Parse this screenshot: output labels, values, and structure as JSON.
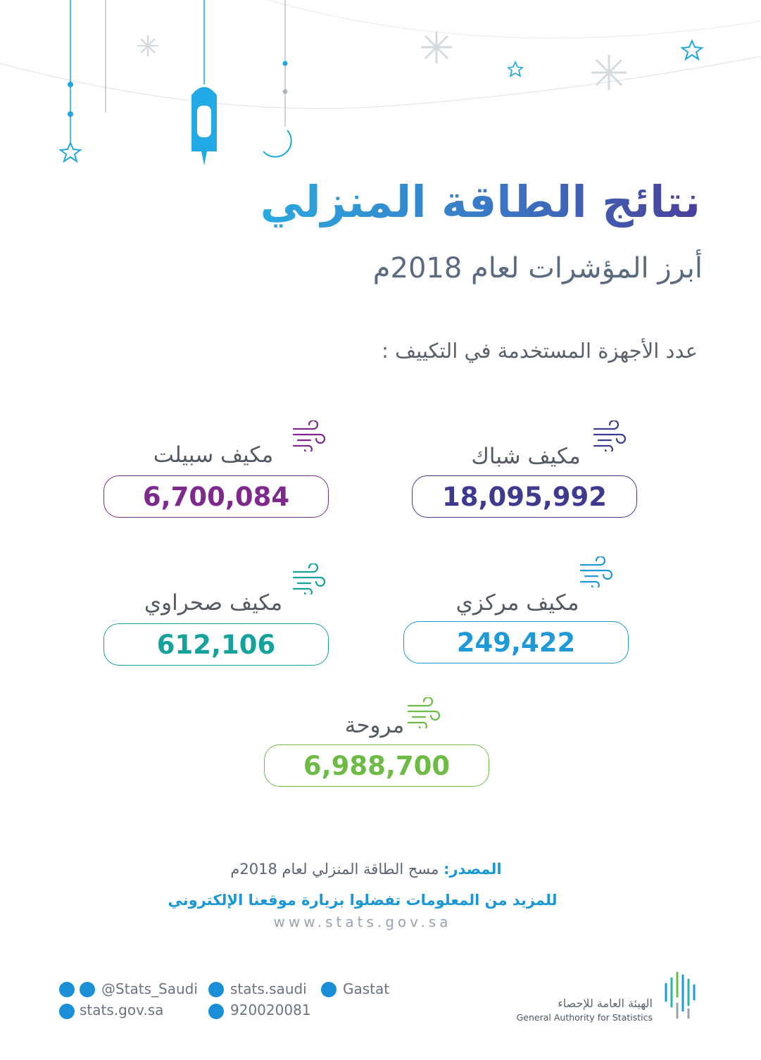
{
  "header": {
    "title": "نتائج الطاقة المنزلي",
    "subtitle": "أبرز المؤشرات لعام 2018م"
  },
  "section": {
    "label": "عدد الأجهزة المستخدمة في التكييف :",
    "items": [
      {
        "label": "مكيف شباك",
        "value": "18,095,992"
      },
      {
        "label": "مكيف سبيلت",
        "value": "6,700,084"
      },
      {
        "label": "مكيف مركزي",
        "value": "249,422"
      },
      {
        "label": "مكيف صحراوي",
        "value": "612,106"
      },
      {
        "label": "مروحة",
        "value": "6,988,700"
      }
    ]
  },
  "footer": {
    "source_label": "المصدر:",
    "source": "مسح الطاقة المنزلي لعام 2018م",
    "more_info": "للمزيد من المعلومات تفضلوا بزيارة موقعنا الإلكتروني",
    "website": "www.stats.gov.sa",
    "social": {
      "twitter": "@Stats_Saudi",
      "facebook": "stats.saudi",
      "linkedin": "Gastat",
      "web": "stats.gov.sa",
      "phone": "920020081"
    },
    "logo_ar": "الهيئة العامة للإحصاء",
    "logo_en": "General Authority for Statistics"
  }
}
